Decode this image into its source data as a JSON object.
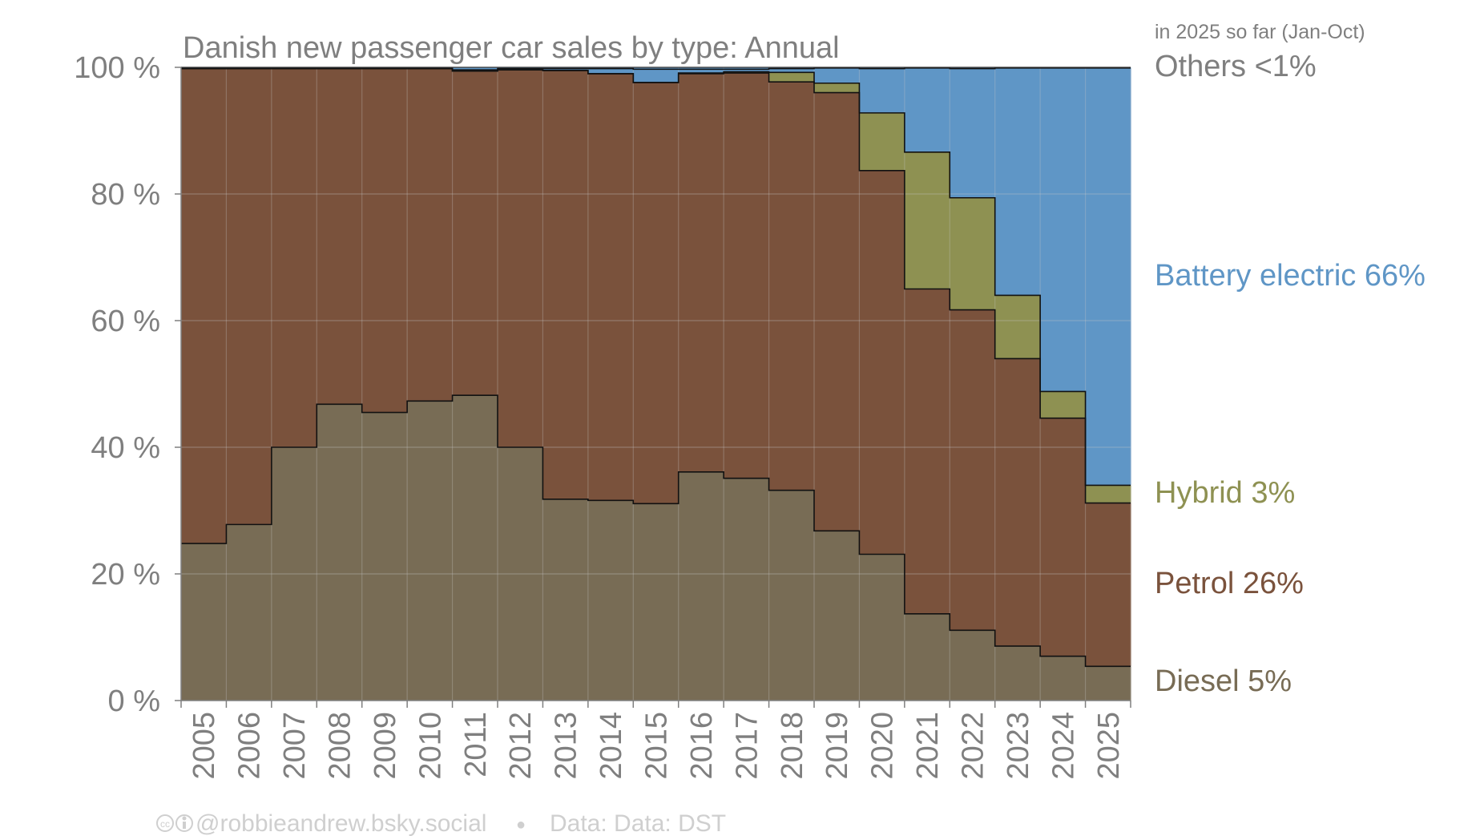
{
  "colors": {
    "diesel": "#786c55",
    "petrol": "#7a523c",
    "hybrid": "#8e9152",
    "battery": "#5f96c6",
    "others": "#5f96c6",
    "axis_text": "#7f7f7f",
    "gridline": "#a0a0a0"
  },
  "chart_data": {
    "type": "area",
    "title": "Danish new passenger car sales by type: Annual",
    "xlabel": "",
    "ylabel": "",
    "ylim": [
      0,
      100
    ],
    "y_ticks": [
      0,
      20,
      40,
      60,
      80,
      100
    ],
    "y_tick_labels": [
      "0 %",
      "20 %",
      "40 %",
      "60 %",
      "80 %",
      "100 %"
    ],
    "categories": [
      "2005",
      "2006",
      "2007",
      "2008",
      "2009",
      "2010",
      "2011",
      "2012",
      "2013",
      "2014",
      "2015",
      "2016",
      "2017",
      "2018",
      "2019",
      "2020",
      "2021",
      "2022",
      "2023",
      "2024",
      "2025"
    ],
    "series": [
      {
        "key": "diesel",
        "values": [
          24.8,
          27.8,
          40.0,
          46.8,
          45.5,
          47.3,
          48.2,
          40.0,
          31.8,
          31.6,
          31.1,
          36.1,
          35.1,
          33.2,
          26.8,
          23.1,
          13.7,
          11.1,
          8.6,
          7.0,
          5.4
        ]
      },
      {
        "key": "petrol",
        "values": [
          75.0,
          72.0,
          59.8,
          53.0,
          54.3,
          52.5,
          51.2,
          59.6,
          67.7,
          67.4,
          66.5,
          62.9,
          64.0,
          64.5,
          69.2,
          60.6,
          51.3,
          50.6,
          45.4,
          37.6,
          25.8
        ]
      },
      {
        "key": "hybrid",
        "values": [
          0.0,
          0.0,
          0.0,
          0.0,
          0.0,
          0.0,
          0.0,
          0.0,
          0.0,
          0.0,
          0.0,
          0.1,
          0.2,
          1.5,
          1.5,
          9.1,
          21.6,
          17.7,
          10.0,
          4.2,
          2.8
        ]
      },
      {
        "key": "battery",
        "values": [
          0.0,
          0.0,
          0.0,
          0.0,
          0.0,
          0.0,
          0.2,
          0.2,
          0.3,
          0.8,
          2.1,
          0.6,
          0.4,
          0.6,
          2.4,
          7.0,
          13.3,
          20.4,
          35.9,
          51.1,
          65.9
        ]
      },
      {
        "key": "others",
        "values": [
          0.2,
          0.2,
          0.2,
          0.2,
          0.2,
          0.2,
          0.4,
          0.2,
          0.2,
          0.2,
          0.3,
          0.3,
          0.3,
          0.2,
          0.1,
          0.2,
          0.1,
          0.2,
          0.1,
          0.1,
          0.1
        ]
      }
    ],
    "grid": true,
    "legend_placement": "right"
  },
  "labels": {
    "note": "in 2025 so far (Jan-Oct)",
    "others": "Others <1%",
    "battery": "Battery electric 66%",
    "hybrid": "Hybrid 3%",
    "petrol": "Petrol 26%",
    "diesel": "Diesel 5%"
  },
  "footer": {
    "cc_icon": "creative-commons-by-icon",
    "credit": "@robbieandrew.bsky.social",
    "separator": "●",
    "source": "Data: Data: DST"
  }
}
